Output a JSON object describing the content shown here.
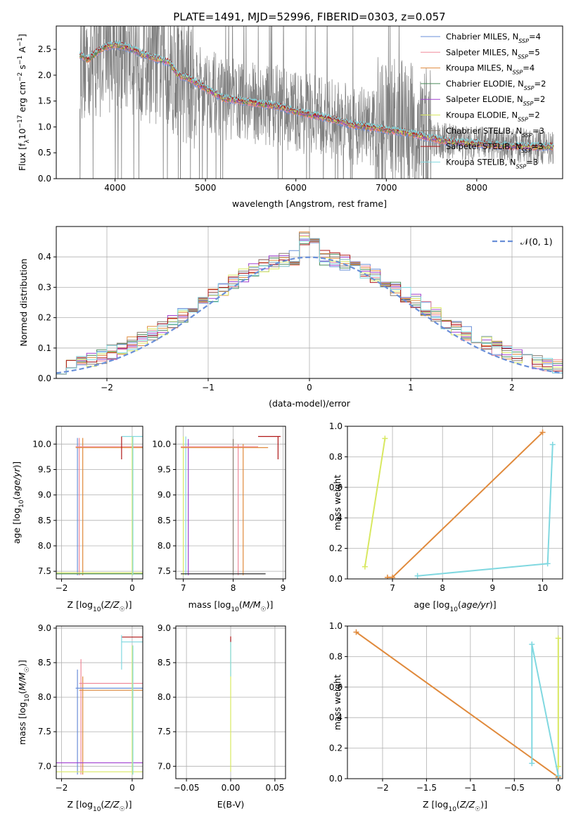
{
  "figure": {
    "title": "PLATE=1491, MJD=52996, FIBERID=0303, z=0.057"
  },
  "chart_data": [
    {
      "id": "spectrum",
      "type": "line",
      "xlabel": "wavelength [Angstrom, rest frame]",
      "ylabel": "Flux [f_λ10^-17 erg cm^-2 s^-1 A^-1]",
      "xlim": [
        3350,
        8950
      ],
      "ylim": [
        0,
        2.95
      ],
      "xticks": [
        4000,
        5000,
        6000,
        7000,
        8000
      ],
      "yticks": [
        0.0,
        0.5,
        1.0,
        1.5,
        2.0,
        2.5
      ],
      "grid": false,
      "legend_position": "top-right",
      "data_color": "#808080",
      "continuum_points": [
        [
          3610,
          2.4
        ],
        [
          3700,
          2.3
        ],
        [
          3800,
          2.45
        ],
        [
          3900,
          2.55
        ],
        [
          4000,
          2.6
        ],
        [
          4100,
          2.55
        ],
        [
          4200,
          2.5
        ],
        [
          4300,
          2.4
        ],
        [
          4400,
          2.35
        ],
        [
          4500,
          2.3
        ],
        [
          4600,
          2.25
        ],
        [
          4700,
          2.0
        ],
        [
          4800,
          1.95
        ],
        [
          4900,
          1.85
        ],
        [
          5000,
          1.75
        ],
        [
          5100,
          1.65
        ],
        [
          5200,
          1.55
        ],
        [
          5400,
          1.5
        ],
        [
          5600,
          1.45
        ],
        [
          5800,
          1.4
        ],
        [
          6000,
          1.3
        ],
        [
          6200,
          1.22
        ],
        [
          6400,
          1.15
        ],
        [
          6600,
          1.05
        ],
        [
          6800,
          1.0
        ],
        [
          7000,
          0.95
        ],
        [
          7200,
          0.9
        ],
        [
          7400,
          0.82
        ],
        [
          7600,
          0.74
        ],
        [
          7800,
          0.7
        ],
        [
          8000,
          0.68
        ],
        [
          8200,
          0.65
        ],
        [
          8400,
          0.63
        ],
        [
          8600,
          0.62
        ],
        [
          8800,
          0.62
        ]
      ],
      "series": [
        {
          "name": "Chabrier MILES, N",
          "sub": "SSP",
          "suffix": "=4",
          "color": "#6a8fd8"
        },
        {
          "name": "Salpeter MILES, N",
          "sub": "SSP",
          "suffix": "=5",
          "color": "#f08a9a"
        },
        {
          "name": "Kroupa MILES, N",
          "sub": "SSP",
          "suffix": "=4",
          "color": "#e08a3c"
        },
        {
          "name": "Chabrier ELODIE, N",
          "sub": "SSP",
          "suffix": "=2",
          "color": "#4a8a5a"
        },
        {
          "name": "Salpeter ELODIE, N",
          "sub": "SSP",
          "suffix": "=2",
          "color": "#a040d0"
        },
        {
          "name": "Kroupa ELODIE, N",
          "sub": "SSP",
          "suffix": "=2",
          "color": "#d8e860"
        },
        {
          "name": "Chabrier STELIB, N",
          "sub": "SSP",
          "suffix": "=3",
          "color": "#8a7f73"
        },
        {
          "name": "Salpeter STELIB, N",
          "sub": "SSP",
          "suffix": "=3",
          "color": "#b01818"
        },
        {
          "name": "Kroupa STELIB, N",
          "sub": "SSP",
          "suffix": "=3",
          "color": "#80d8e0"
        }
      ]
    },
    {
      "id": "residuals",
      "type": "line",
      "xlabel": "(data-model)/error",
      "ylabel": "Normed distribution",
      "xlim": [
        -2.5,
        2.5
      ],
      "ylim": [
        0,
        0.5
      ],
      "xticks": [
        -2,
        -1,
        0,
        1,
        2
      ],
      "yticks": [
        0.0,
        0.1,
        0.2,
        0.3,
        0.4
      ],
      "grid": true,
      "legend_position": "top-right",
      "legend_label": "𝒩(0, 1)",
      "gaussian_color": "#6a8fd8"
    },
    {
      "id": "age-vs-Z",
      "type": "scatter",
      "xlabel": "Z [log10(Z/Z☉)]",
      "ylabel": "age  [log10(age/yr)]",
      "xlim": [
        -2.15,
        0.3
      ],
      "ylim": [
        7.35,
        10.35
      ],
      "xticks": [
        -2,
        0
      ],
      "yticks": [
        7.5,
        8.0,
        8.5,
        9.0,
        9.5,
        10.0
      ],
      "grid": true
    },
    {
      "id": "age-vs-mass",
      "type": "scatter",
      "xlabel": "mass [log10(M/M☉)]",
      "ylabel": "",
      "xlim": [
        6.85,
        9.05
      ],
      "ylim": [
        7.35,
        10.35
      ],
      "xticks": [
        7,
        8,
        9
      ],
      "yticks": [
        7.5,
        8.0,
        8.5,
        9.0,
        9.5,
        10.0
      ],
      "grid": true
    },
    {
      "id": "weight-vs-age",
      "type": "line",
      "xlabel": "age  [log10(age/yr)]",
      "ylabel": "mass weight",
      "xlim": [
        6.1,
        10.4
      ],
      "ylim": [
        0,
        1.0
      ],
      "xticks": [
        7,
        8,
        9,
        10
      ],
      "yticks": [
        0.0,
        0.2,
        0.4,
        0.6,
        0.8,
        1.0
      ],
      "grid": true,
      "series": [
        {
          "name": "Kroupa ELODIE",
          "color": "#d8e860",
          "points": [
            [
              6.45,
              0.08
            ],
            [
              6.85,
              0.92
            ]
          ]
        },
        {
          "name": "Kroupa MILES",
          "color": "#e08a3c",
          "points": [
            [
              6.9,
              0.01
            ],
            [
              7.0,
              0.01
            ],
            [
              10.0,
              0.96
            ]
          ]
        },
        {
          "name": "Kroupa STELIB",
          "color": "#80d8e0",
          "points": [
            [
              7.5,
              0.02
            ],
            [
              10.1,
              0.1
            ],
            [
              10.2,
              0.88
            ]
          ]
        }
      ]
    },
    {
      "id": "mass-vs-Z",
      "type": "scatter",
      "xlabel": "Z [log10(Z/Z☉)]",
      "ylabel": "mass [log10(M/M☉)]",
      "xlim": [
        -2.15,
        0.3
      ],
      "ylim": [
        6.82,
        9.03
      ],
      "xticks": [
        -2,
        0
      ],
      "yticks": [
        7.0,
        7.5,
        8.0,
        8.5,
        9.0
      ],
      "grid": true
    },
    {
      "id": "mass-vs-ebv",
      "type": "scatter",
      "xlabel": "E(B-V)",
      "ylabel": "",
      "xlim": [
        -0.062,
        0.062
      ],
      "ylim": [
        6.82,
        9.03
      ],
      "xticks": [
        -0.05,
        0.0,
        0.05
      ],
      "xticklabels": [
        "−0.05",
        "0.00",
        "0.05"
      ],
      "yticks": [
        7.0,
        7.5,
        8.0,
        8.5,
        9.0
      ],
      "grid": true
    },
    {
      "id": "weight-vs-Z",
      "type": "line",
      "xlabel": "Z [log10(Z/Z☉)]",
      "ylabel": "mass weight",
      "xlim": [
        -2.4,
        0.05
      ],
      "ylim": [
        0,
        1.0
      ],
      "xticks": [
        -2.0,
        -1.5,
        -1.0,
        -0.5,
        0.0
      ],
      "yticks": [
        0.0,
        0.2,
        0.4,
        0.6,
        0.8,
        1.0
      ],
      "grid": true,
      "series": [
        {
          "name": "Kroupa ELODIE",
          "color": "#d8e860",
          "points": [
            [
              0.0,
              0.08
            ],
            [
              0.0,
              0.92
            ]
          ]
        },
        {
          "name": "Kroupa MILES",
          "color": "#e08a3c",
          "points": [
            [
              -2.3,
              0.96
            ],
            [
              0.0,
              0.01
            ]
          ]
        },
        {
          "name": "Kroupa STELIB",
          "color": "#80d8e0",
          "points": [
            [
              -0.3,
              0.1
            ],
            [
              -0.3,
              0.88
            ],
            [
              0.0,
              0.02
            ]
          ]
        }
      ]
    }
  ]
}
